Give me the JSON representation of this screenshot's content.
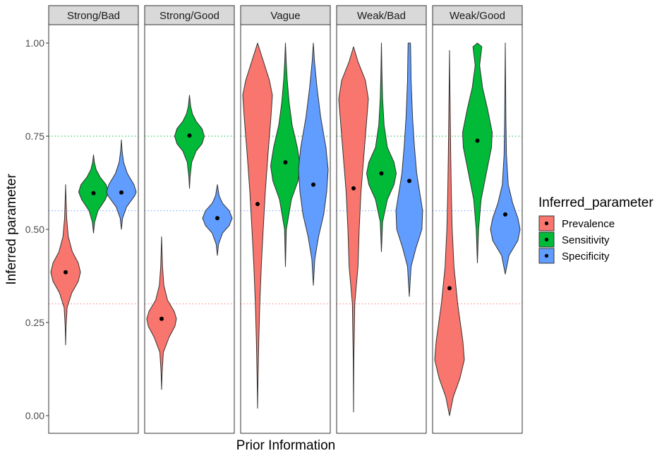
{
  "chart_data": {
    "type": "violin",
    "xlabel": "Prior Information",
    "ylabel": "Inferred parameter",
    "ylim": [
      0,
      1
    ],
    "yticks": [
      "0.00",
      "0.25",
      "0.50",
      "0.75",
      "1.00"
    ],
    "ytick_values": [
      0,
      0.25,
      0.5,
      0.75,
      1.0
    ],
    "grid": false,
    "legend": {
      "title": "Inferred_parameter",
      "position": "right",
      "entries": [
        "Prevalence",
        "Sensitivity",
        "Specificity"
      ]
    },
    "colors": {
      "Prevalence": "#f8766d",
      "Sensitivity": "#00ba38",
      "Specificity": "#619cff",
      "outline": "#333333",
      "point": "#000000"
    },
    "reference_lines": [
      {
        "series": "Prevalence",
        "y": 0.3,
        "style": "dotted"
      },
      {
        "series": "Sensitivity",
        "y": 0.75,
        "style": "dotted"
      },
      {
        "series": "Specificity",
        "y": 0.55,
        "style": "dotted"
      }
    ],
    "panels": [
      {
        "name": "Strong/Bad",
        "violins": [
          {
            "series": "Prevalence",
            "point": 0.385,
            "min": 0.19,
            "max": 0.62,
            "profile": [
              [
                0.19,
                0.0
              ],
              [
                0.24,
                0.03
              ],
              [
                0.29,
                0.1
              ],
              [
                0.33,
                0.42
              ],
              [
                0.36,
                0.85
              ],
              [
                0.385,
                1.0
              ],
              [
                0.41,
                0.85
              ],
              [
                0.44,
                0.45
              ],
              [
                0.48,
                0.18
              ],
              [
                0.53,
                0.07
              ],
              [
                0.58,
                0.03
              ],
              [
                0.62,
                0.0
              ]
            ]
          },
          {
            "series": "Sensitivity",
            "point": 0.597,
            "min": 0.49,
            "max": 0.7,
            "profile": [
              [
                0.49,
                0.0
              ],
              [
                0.52,
                0.08
              ],
              [
                0.55,
                0.3
              ],
              [
                0.58,
                0.8
              ],
              [
                0.6,
                1.0
              ],
              [
                0.62,
                0.85
              ],
              [
                0.64,
                0.45
              ],
              [
                0.66,
                0.18
              ],
              [
                0.68,
                0.06
              ],
              [
                0.7,
                0.0
              ]
            ]
          },
          {
            "series": "Specificity",
            "point": 0.599,
            "min": 0.5,
            "max": 0.74,
            "profile": [
              [
                0.5,
                0.0
              ],
              [
                0.53,
                0.08
              ],
              [
                0.56,
                0.35
              ],
              [
                0.59,
                0.9
              ],
              [
                0.6,
                1.0
              ],
              [
                0.62,
                0.85
              ],
              [
                0.65,
                0.4
              ],
              [
                0.68,
                0.15
              ],
              [
                0.71,
                0.05
              ],
              [
                0.74,
                0.0
              ]
            ]
          }
        ]
      },
      {
        "name": "Strong/Good",
        "violins": [
          {
            "series": "Prevalence",
            "point": 0.26,
            "min": 0.07,
            "max": 0.48,
            "profile": [
              [
                0.07,
                0.0
              ],
              [
                0.12,
                0.04
              ],
              [
                0.17,
                0.12
              ],
              [
                0.21,
                0.5
              ],
              [
                0.24,
                0.9
              ],
              [
                0.26,
                1.0
              ],
              [
                0.28,
                0.85
              ],
              [
                0.31,
                0.4
              ],
              [
                0.35,
                0.15
              ],
              [
                0.4,
                0.06
              ],
              [
                0.44,
                0.03
              ],
              [
                0.48,
                0.0
              ]
            ]
          },
          {
            "series": "Sensitivity",
            "point": 0.752,
            "min": 0.61,
            "max": 0.86,
            "profile": [
              [
                0.61,
                0.0
              ],
              [
                0.64,
                0.04
              ],
              [
                0.68,
                0.15
              ],
              [
                0.71,
                0.45
              ],
              [
                0.73,
                0.85
              ],
              [
                0.75,
                1.0
              ],
              [
                0.77,
                0.85
              ],
              [
                0.79,
                0.45
              ],
              [
                0.81,
                0.2
              ],
              [
                0.83,
                0.08
              ],
              [
                0.86,
                0.0
              ]
            ]
          },
          {
            "series": "Specificity",
            "point": 0.53,
            "min": 0.43,
            "max": 0.62,
            "profile": [
              [
                0.43,
                0.0
              ],
              [
                0.46,
                0.08
              ],
              [
                0.49,
                0.35
              ],
              [
                0.51,
                0.8
              ],
              [
                0.53,
                1.0
              ],
              [
                0.55,
                0.8
              ],
              [
                0.57,
                0.35
              ],
              [
                0.59,
                0.12
              ],
              [
                0.62,
                0.0
              ]
            ]
          }
        ]
      },
      {
        "name": "Vague",
        "violins": [
          {
            "series": "Prevalence",
            "point": 0.568,
            "min": 0.02,
            "max": 1.0,
            "profile": [
              [
                0.02,
                0.0
              ],
              [
                0.1,
                0.03
              ],
              [
                0.2,
                0.08
              ],
              [
                0.3,
                0.15
              ],
              [
                0.4,
                0.25
              ],
              [
                0.5,
                0.38
              ],
              [
                0.6,
                0.52
              ],
              [
                0.7,
                0.7
              ],
              [
                0.8,
                0.9
              ],
              [
                0.86,
                1.0
              ],
              [
                0.9,
                0.8
              ],
              [
                0.95,
                0.4
              ],
              [
                1.0,
                0.0
              ]
            ]
          },
          {
            "series": "Sensitivity",
            "point": 0.68,
            "min": 0.4,
            "max": 1.0,
            "profile": [
              [
                0.4,
                0.0
              ],
              [
                0.5,
                0.06
              ],
              [
                0.58,
                0.4
              ],
              [
                0.63,
                0.85
              ],
              [
                0.67,
                1.0
              ],
              [
                0.72,
                0.8
              ],
              [
                0.78,
                0.45
              ],
              [
                0.84,
                0.25
              ],
              [
                0.9,
                0.12
              ],
              [
                0.95,
                0.05
              ],
              [
                1.0,
                0.0
              ]
            ]
          },
          {
            "series": "Specificity",
            "point": 0.62,
            "min": 0.35,
            "max": 1.0,
            "profile": [
              [
                0.35,
                0.0
              ],
              [
                0.42,
                0.1
              ],
              [
                0.48,
                0.35
              ],
              [
                0.54,
                0.7
              ],
              [
                0.6,
                0.9
              ],
              [
                0.66,
                1.0
              ],
              [
                0.72,
                0.85
              ],
              [
                0.8,
                0.5
              ],
              [
                0.88,
                0.25
              ],
              [
                0.95,
                0.08
              ],
              [
                1.0,
                0.0
              ]
            ]
          }
        ]
      },
      {
        "name": "Weak/Bad",
        "violins": [
          {
            "series": "Prevalence",
            "point": 0.61,
            "min": 0.01,
            "max": 0.99,
            "profile": [
              [
                0.01,
                0.0
              ],
              [
                0.15,
                0.02
              ],
              [
                0.3,
                0.08
              ],
              [
                0.4,
                0.3
              ],
              [
                0.5,
                0.38
              ],
              [
                0.6,
                0.5
              ],
              [
                0.7,
                0.7
              ],
              [
                0.8,
                0.9
              ],
              [
                0.85,
                1.0
              ],
              [
                0.9,
                0.8
              ],
              [
                0.95,
                0.3
              ],
              [
                0.99,
                0.0
              ]
            ]
          },
          {
            "series": "Sensitivity",
            "point": 0.65,
            "min": 0.44,
            "max": 1.0,
            "profile": [
              [
                0.44,
                0.0
              ],
              [
                0.52,
                0.08
              ],
              [
                0.58,
                0.4
              ],
              [
                0.62,
                0.85
              ],
              [
                0.65,
                1.0
              ],
              [
                0.68,
                0.85
              ],
              [
                0.72,
                0.4
              ],
              [
                0.78,
                0.18
              ],
              [
                0.85,
                0.08
              ],
              [
                0.93,
                0.03
              ],
              [
                1.0,
                0.0
              ]
            ]
          },
          {
            "series": "Specificity",
            "point": 0.63,
            "min": 0.32,
            "max": 1.0,
            "profile": [
              [
                0.32,
                0.0
              ],
              [
                0.4,
                0.12
              ],
              [
                0.45,
                0.45
              ],
              [
                0.5,
                0.85
              ],
              [
                0.55,
                0.9
              ],
              [
                0.6,
                0.7
              ],
              [
                0.65,
                0.5
              ],
              [
                0.72,
                0.35
              ],
              [
                0.8,
                0.22
              ],
              [
                0.9,
                0.12
              ],
              [
                0.96,
                0.1
              ],
              [
                1.0,
                0.08
              ]
            ]
          }
        ]
      },
      {
        "name": "Weak/Good",
        "violins": [
          {
            "series": "Prevalence",
            "point": 0.342,
            "min": 0.0,
            "max": 0.98,
            "profile": [
              [
                0.0,
                0.0
              ],
              [
                0.05,
                0.25
              ],
              [
                0.1,
                0.7
              ],
              [
                0.15,
                1.0
              ],
              [
                0.2,
                0.9
              ],
              [
                0.3,
                0.55
              ],
              [
                0.4,
                0.3
              ],
              [
                0.5,
                0.18
              ],
              [
                0.6,
                0.12
              ],
              [
                0.7,
                0.08
              ],
              [
                0.8,
                0.05
              ],
              [
                0.9,
                0.02
              ],
              [
                0.98,
                0.0
              ]
            ]
          },
          {
            "series": "Sensitivity",
            "point": 0.738,
            "min": 0.41,
            "max": 1.0,
            "profile": [
              [
                0.41,
                0.0
              ],
              [
                0.5,
                0.08
              ],
              [
                0.58,
                0.25
              ],
              [
                0.65,
                0.6
              ],
              [
                0.72,
                0.95
              ],
              [
                0.76,
                1.0
              ],
              [
                0.82,
                0.7
              ],
              [
                0.88,
                0.35
              ],
              [
                0.94,
                0.15
              ],
              [
                0.99,
                0.3
              ],
              [
                1.0,
                0.0
              ]
            ]
          },
          {
            "series": "Specificity",
            "point": 0.54,
            "min": 0.38,
            "max": 1.0,
            "profile": [
              [
                0.38,
                0.0
              ],
              [
                0.43,
                0.25
              ],
              [
                0.47,
                0.85
              ],
              [
                0.5,
                1.0
              ],
              [
                0.53,
                0.85
              ],
              [
                0.57,
                0.5
              ],
              [
                0.62,
                0.2
              ],
              [
                0.7,
                0.08
              ],
              [
                0.8,
                0.04
              ],
              [
                0.9,
                0.02
              ],
              [
                1.0,
                0.0
              ]
            ]
          }
        ]
      }
    ]
  }
}
